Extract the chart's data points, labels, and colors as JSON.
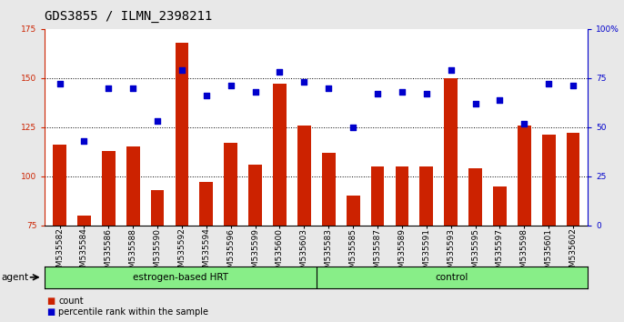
{
  "title": "GDS3855 / ILMN_2398211",
  "categories": [
    "GSM535582",
    "GSM535584",
    "GSM535586",
    "GSM535588",
    "GSM535590",
    "GSM535592",
    "GSM535594",
    "GSM535596",
    "GSM535599",
    "GSM535600",
    "GSM535603",
    "GSM535583",
    "GSM535585",
    "GSM535587",
    "GSM535589",
    "GSM535591",
    "GSM535593",
    "GSM535595",
    "GSM535597",
    "GSM535598",
    "GSM535601",
    "GSM535602"
  ],
  "bar_values": [
    116,
    80,
    113,
    115,
    93,
    168,
    97,
    117,
    106,
    147,
    126,
    112,
    90,
    105,
    105,
    105,
    150,
    104,
    95,
    126,
    121,
    122
  ],
  "dot_values": [
    72,
    43,
    70,
    70,
    53,
    79,
    66,
    71,
    68,
    78,
    73,
    70,
    50,
    67,
    68,
    67,
    79,
    62,
    64,
    52,
    72,
    71
  ],
  "group1_label": "estrogen-based HRT",
  "group2_label": "control",
  "group1_count": 11,
  "group2_count": 11,
  "bar_color": "#CC2200",
  "dot_color": "#0000CC",
  "left_axis_color": "#CC2200",
  "right_axis_color": "#0000CC",
  "ylim_left": [
    75,
    175
  ],
  "ylim_right": [
    0,
    100
  ],
  "left_ticks": [
    75,
    100,
    125,
    150,
    175
  ],
  "right_ticks": [
    0,
    25,
    50,
    75,
    100
  ],
  "right_tick_labels": [
    "0",
    "25",
    "50",
    "75",
    "100%"
  ],
  "grid_values": [
    100,
    125,
    150
  ],
  "group_color": "#88EE88",
  "agent_label": "agent",
  "legend_count_label": "count",
  "legend_pct_label": "percentile rank within the sample",
  "background_color": "#E8E8E8",
  "plot_bg": "#FFFFFF",
  "title_fontsize": 10,
  "tick_fontsize": 6.5,
  "label_fontsize": 7.5
}
